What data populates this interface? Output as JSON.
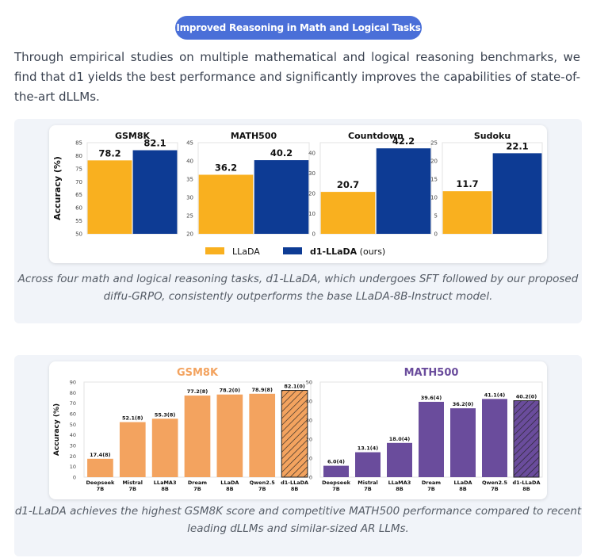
{
  "header": {
    "badge": "Improved Reasoning in Math and Logical Tasks",
    "intro": "Through empirical studies on multiple mathematical and logical reasoning benchmarks, we find that d1 yields the best performance and significantly improves the capabilities of state-of-the-art dLLMs."
  },
  "figure1": {
    "caption": "Across four math and logical reasoning tasks, d1-LLaDA, which undergoes SFT followed by our proposed diffu-GRPO, consistently outperforms the base LLaDA-8B-Instruct model.",
    "ylabel": "Accuracy (%)",
    "legend": {
      "a": "LLaDA",
      "b_bold": "d1-LLaDA",
      "b_rest": " (ours)"
    }
  },
  "figure2": {
    "caption": "d1-LLaDA achieves the highest GSM8K score and competitive MATH500 performance compared to recent leading dLLMs and similar-sized AR LLMs.",
    "ylabel": "Accuracy (%)"
  },
  "colors": {
    "llada": "#f9b01f",
    "d1": "#0d3b94",
    "gsm_bar": "#f3a35f",
    "gsm_title": "#f3a35f",
    "math_bar": "#6a4c9c",
    "math_title": "#6a4c9c"
  },
  "chart_data": [
    {
      "type": "bar",
      "title": "GSM8K",
      "ylabel": "Accuracy (%)",
      "categories": [
        "LLaDA",
        "d1-LLaDA (ours)"
      ],
      "values": [
        78.2,
        82.1
      ],
      "labels": [
        "78.2",
        "82.1"
      ],
      "ylim": [
        50,
        85
      ],
      "yticks": [
        "50",
        "55",
        "60",
        "65",
        "70",
        "75",
        "80",
        "85"
      ]
    },
    {
      "type": "bar",
      "title": "MATH500",
      "ylabel": "",
      "categories": [
        "LLaDA",
        "d1-LLaDA (ours)"
      ],
      "values": [
        36.2,
        40.2
      ],
      "labels": [
        "36.2",
        "40.2"
      ],
      "ylim": [
        20,
        45
      ],
      "yticks": [
        "20",
        "25",
        "30",
        "35",
        "40",
        "45"
      ]
    },
    {
      "type": "bar",
      "title": "Countdown",
      "ylabel": "",
      "categories": [
        "LLaDA",
        "d1-LLaDA (ours)"
      ],
      "values": [
        20.7,
        42.2
      ],
      "labels": [
        "20.7",
        "42.2"
      ],
      "ylim": [
        0,
        45
      ],
      "yticks": [
        "0",
        "10",
        "20",
        "30",
        "40"
      ]
    },
    {
      "type": "bar",
      "title": "Sudoku",
      "ylabel": "",
      "categories": [
        "LLaDA",
        "d1-LLaDA (ours)"
      ],
      "values": [
        11.7,
        22.1
      ],
      "labels": [
        "11.7",
        "22.1"
      ],
      "ylim": [
        0,
        25
      ],
      "yticks": [
        "0",
        "5",
        "10",
        "15",
        "20",
        "25"
      ]
    },
    {
      "type": "bar",
      "title": "GSM8K",
      "ylabel": "Accuracy (%)",
      "categories": [
        [
          "Deepseek",
          "7B"
        ],
        [
          "Mistral",
          "7B"
        ],
        [
          "LLaMA3",
          "8B"
        ],
        [
          "Dream",
          "7B"
        ],
        [
          "LLaDA",
          "8B"
        ],
        [
          "Qwen2.5",
          "7B"
        ],
        [
          "d1-LLaDA",
          "8B"
        ]
      ],
      "values": [
        17.4,
        52.1,
        55.3,
        77.2,
        78.2,
        78.9,
        82.1
      ],
      "labels": [
        "17.4(8)",
        "52.1(8)",
        "55.3(8)",
        "77.2(8)",
        "78.2(0)",
        "78.9(8)",
        "82.1(0)"
      ],
      "highlight_index": 6,
      "ylim": [
        0,
        90
      ],
      "yticks": [
        "0",
        "10",
        "20",
        "30",
        "40",
        "50",
        "60",
        "70",
        "80",
        "90"
      ]
    },
    {
      "type": "bar",
      "title": "MATH500",
      "ylabel": "",
      "categories": [
        [
          "Deepseek",
          "7B"
        ],
        [
          "Mistral",
          "7B"
        ],
        [
          "LLaMA3",
          "8B"
        ],
        [
          "Dream",
          "7B"
        ],
        [
          "LLaDA",
          "8B"
        ],
        [
          "Qwen2.5",
          "7B"
        ],
        [
          "d1-LLaDA",
          "8B"
        ]
      ],
      "values": [
        6.0,
        13.1,
        18.0,
        39.6,
        36.2,
        41.1,
        40.2
      ],
      "labels": [
        "6.0(4)",
        "13.1(4)",
        "18.0(4)",
        "39.6(4)",
        "36.2(0)",
        "41.1(4)",
        "40.2(0)"
      ],
      "highlight_index": 6,
      "ylim": [
        0,
        50
      ],
      "yticks": [
        "0",
        "10",
        "20",
        "30",
        "40",
        "50"
      ]
    }
  ]
}
